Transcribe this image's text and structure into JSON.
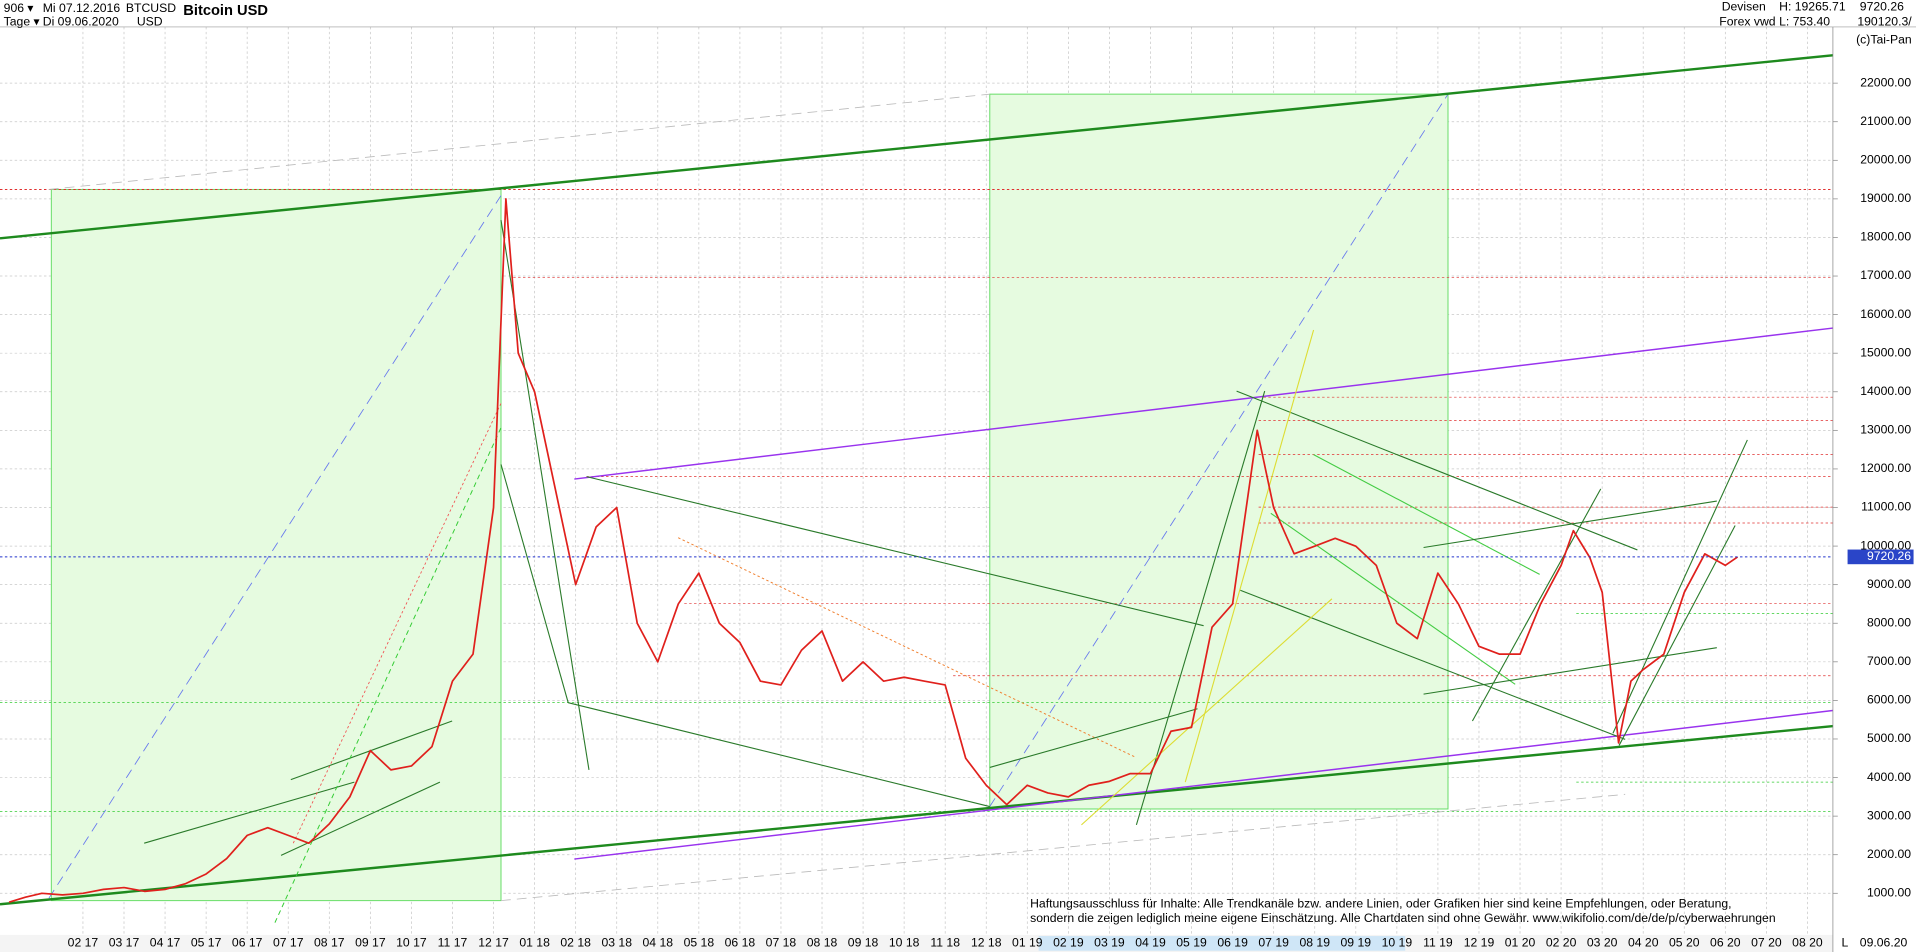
{
  "header": {
    "count": "906 ▾",
    "from": "Mi 07.12.2016",
    "period": "Tage ▾",
    "to": "Di 09.06.2020",
    "symbol": "BTCUSD",
    "currency": "USD",
    "market": "Devisen",
    "source": "Forex vwd",
    "high": "H: 19265.71",
    "low": "L: 753.40",
    "volume": "190120.3/",
    "copyright": "(c)Tai-Pan",
    "end_date": "09.06.20",
    "scale_mode": "L"
  },
  "disclaimer": [
    "Haftungsausschluss für Inhalte: Alle Trendkanäle bzw. andere Linien, oder Grafiken hier sind keine Empfehlungen, oder Beratung,",
    "sondern die zeigen lediglich meine eigene Einschätzung. Alle Chartdaten sind ohne Gewähr.  www.wikifolio.com/de/de/p/cyberwaehrungen"
  ],
  "chart_data": {
    "type": "line",
    "title": "Bitcoin USD",
    "color": "#e0201c",
    "grid": true,
    "last_value": 9720.26,
    "x": [
      0.2,
      0.6,
      1,
      1.5,
      2,
      2.5,
      3,
      3.5,
      4,
      4.5,
      5,
      5.5,
      6,
      6.5,
      7,
      7.5,
      8,
      8.5,
      9,
      9.5,
      10,
      10.5,
      11,
      11.5,
      12,
      12.3,
      12.6,
      13,
      13.5,
      14,
      14.5,
      15,
      15.5,
      16,
      16.5,
      17,
      17.5,
      18,
      18.5,
      19,
      19.5,
      20,
      20.5,
      21,
      21.5,
      22,
      22.5,
      23,
      23.5,
      24,
      24.5,
      25,
      25.5,
      26,
      26.5,
      27,
      27.5,
      28,
      28.5,
      29,
      29.5,
      30,
      30.6,
      31,
      31.5,
      32,
      32.5,
      33,
      33.5,
      34,
      34.5,
      35,
      35.5,
      36,
      36.5,
      37,
      37.5,
      38,
      38.3,
      38.7,
      39,
      39.4,
      39.7,
      40,
      40.5,
      41,
      41.5,
      42,
      42.3
    ],
    "values": [
      770,
      900,
      1000,
      960,
      1000,
      1100,
      1150,
      1050,
      1100,
      1250,
      1500,
      1900,
      2500,
      2700,
      2500,
      2300,
      2800,
      3500,
      4700,
      4200,
      4300,
      4800,
      6500,
      7200,
      11000,
      19000,
      15000,
      14000,
      11500,
      9000,
      10500,
      11000,
      8000,
      7000,
      8500,
      9300,
      8000,
      7500,
      6500,
      6400,
      7300,
      7800,
      6500,
      7000,
      6500,
      6600,
      6500,
      6400,
      4500,
      3800,
      3300,
      3800,
      3600,
      3500,
      3800,
      3900,
      4100,
      4100,
      5200,
      5300,
      7900,
      8500,
      13000,
      11000,
      9800,
      10000,
      10200,
      10000,
      9500,
      8000,
      7600,
      9300,
      8500,
      7400,
      7200,
      7200,
      8500,
      9500,
      10400,
      9700,
      8800,
      4900,
      6500,
      6800,
      7200,
      8800,
      9800,
      9500,
      9720.26
    ],
    "xlim": [
      -0.02,
      44.62
    ],
    "ylim": [
      -77,
      23457
    ],
    "xticks": [
      {
        "value": 2,
        "label": "02 17"
      },
      {
        "value": 3,
        "label": "03 17"
      },
      {
        "value": 4,
        "label": "04 17"
      },
      {
        "value": 5,
        "label": "05 17"
      },
      {
        "value": 6,
        "label": "06 17"
      },
      {
        "value": 7,
        "label": "07 17"
      },
      {
        "value": 8,
        "label": "08 17"
      },
      {
        "value": 9,
        "label": "09 17"
      },
      {
        "value": 10,
        "label": "10 17"
      },
      {
        "value": 11,
        "label": "11 17"
      },
      {
        "value": 12,
        "label": "12 17"
      },
      {
        "value": 13,
        "label": "01 18"
      },
      {
        "value": 14,
        "label": "02 18"
      },
      {
        "value": 15,
        "label": "03 18"
      },
      {
        "value": 16,
        "label": "04 18"
      },
      {
        "value": 17,
        "label": "05 18"
      },
      {
        "value": 18,
        "label": "06 18"
      },
      {
        "value": 19,
        "label": "07 18"
      },
      {
        "value": 20,
        "label": "08 18"
      },
      {
        "value": 21,
        "label": "09 18"
      },
      {
        "value": 22,
        "label": "10 18"
      },
      {
        "value": 23,
        "label": "11 18"
      },
      {
        "value": 24,
        "label": "12 18"
      },
      {
        "value": 25,
        "label": "01 19"
      },
      {
        "value": 26,
        "label": "02 19"
      },
      {
        "value": 27,
        "label": "03 19"
      },
      {
        "value": 28,
        "label": "04 19"
      },
      {
        "value": 29,
        "label": "05 19"
      },
      {
        "value": 30,
        "label": "06 19"
      },
      {
        "value": 31,
        "label": "07 19"
      },
      {
        "value": 32,
        "label": "08 19"
      },
      {
        "value": 33,
        "label": "09 19"
      },
      {
        "value": 34,
        "label": "10 19"
      },
      {
        "value": 35,
        "label": "11 19"
      },
      {
        "value": 36,
        "label": "12 19"
      },
      {
        "value": 37,
        "label": "01 20"
      },
      {
        "value": 38,
        "label": "02 20"
      },
      {
        "value": 39,
        "label": "03 20"
      },
      {
        "value": 40,
        "label": "04 20"
      },
      {
        "value": 41,
        "label": "05 20"
      },
      {
        "value": 42,
        "label": "06 20"
      },
      {
        "value": 43,
        "label": "07 20"
      },
      {
        "value": 44,
        "label": "08 20"
      }
    ],
    "yticks": [
      {
        "value": 1000,
        "label": "1000.00"
      },
      {
        "value": 2000,
        "label": "2000.00"
      },
      {
        "value": 3000,
        "label": "3000.00"
      },
      {
        "value": 4000,
        "label": "4000.00"
      },
      {
        "value": 5000,
        "label": "5000.00"
      },
      {
        "value": 6000,
        "label": "6000.00"
      },
      {
        "value": 7000,
        "label": "7000.00"
      },
      {
        "value": 8000,
        "label": "8000.00"
      },
      {
        "value": 9000,
        "label": "9000.00"
      },
      {
        "value": 10000,
        "label": "10000.00"
      },
      {
        "value": 11000,
        "label": "11000.00"
      },
      {
        "value": 12000,
        "label": "12000.00"
      },
      {
        "value": 13000,
        "label": "13000.00"
      },
      {
        "value": 14000,
        "label": "14000.00"
      },
      {
        "value": 15000,
        "label": "15000.00"
      },
      {
        "value": 16000,
        "label": "16000.00"
      },
      {
        "value": 17000,
        "label": "17000.00"
      },
      {
        "value": 18000,
        "label": "18000.00"
      },
      {
        "value": 19000,
        "label": "19000.00"
      },
      {
        "value": 20000,
        "label": "20000.00"
      },
      {
        "value": 21000,
        "label": "21000.00"
      },
      {
        "value": 22000,
        "label": "22000.00"
      }
    ]
  }
}
